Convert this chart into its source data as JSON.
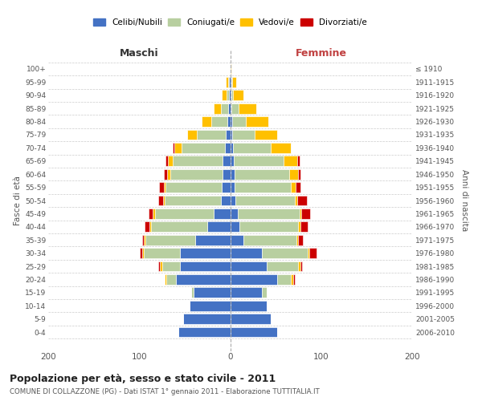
{
  "age_groups": [
    "0-4",
    "5-9",
    "10-14",
    "15-19",
    "20-24",
    "25-29",
    "30-34",
    "35-39",
    "40-44",
    "45-49",
    "50-54",
    "55-59",
    "60-64",
    "65-69",
    "70-74",
    "75-79",
    "80-84",
    "85-89",
    "90-94",
    "95-99",
    "100+"
  ],
  "birth_years": [
    "2006-2010",
    "2001-2005",
    "1996-2000",
    "1991-1995",
    "1986-1990",
    "1981-1985",
    "1976-1980",
    "1971-1975",
    "1966-1970",
    "1961-1965",
    "1956-1960",
    "1951-1955",
    "1946-1950",
    "1941-1945",
    "1936-1940",
    "1931-1935",
    "1926-1930",
    "1921-1925",
    "1916-1920",
    "1911-1915",
    "≤ 1910"
  ],
  "male_celibi": [
    57,
    52,
    45,
    40,
    60,
    55,
    55,
    38,
    25,
    18,
    10,
    9,
    8,
    8,
    6,
    5,
    3,
    2,
    1,
    1,
    0
  ],
  "male_coniugati": [
    0,
    0,
    0,
    3,
    10,
    20,
    40,
    55,
    62,
    65,
    62,
    62,
    58,
    55,
    47,
    32,
    18,
    8,
    3,
    1,
    0
  ],
  "male_vedovi": [
    0,
    0,
    0,
    0,
    2,
    2,
    2,
    2,
    2,
    2,
    2,
    2,
    3,
    5,
    8,
    10,
    10,
    8,
    5,
    3,
    0
  ],
  "male_divorziati": [
    0,
    0,
    0,
    0,
    0,
    2,
    2,
    2,
    5,
    5,
    5,
    5,
    4,
    3,
    2,
    0,
    0,
    0,
    0,
    0,
    0
  ],
  "female_nubili": [
    52,
    45,
    40,
    35,
    52,
    40,
    35,
    15,
    10,
    8,
    6,
    5,
    5,
    4,
    3,
    2,
    2,
    1,
    1,
    1,
    0
  ],
  "female_coniugate": [
    0,
    0,
    0,
    5,
    15,
    35,
    50,
    58,
    65,
    68,
    65,
    62,
    60,
    55,
    42,
    25,
    15,
    8,
    2,
    1,
    0
  ],
  "female_vedove": [
    0,
    0,
    0,
    0,
    2,
    2,
    2,
    2,
    2,
    2,
    3,
    5,
    10,
    15,
    22,
    25,
    25,
    20,
    12,
    5,
    1
  ],
  "female_divorziate": [
    0,
    0,
    0,
    0,
    2,
    2,
    8,
    5,
    8,
    10,
    10,
    5,
    2,
    2,
    0,
    0,
    0,
    0,
    0,
    0,
    0
  ],
  "colors": {
    "celibi": "#4472c4",
    "coniugati": "#b8cfa0",
    "vedovi": "#ffc000",
    "divorziati": "#cc0000"
  },
  "title": "Popolazione per età, sesso e stato civile - 2011",
  "subtitle": "COMUNE DI COLLAZZONE (PG) - Dati ISTAT 1° gennaio 2011 - Elaborazione TUTTITALIA.IT",
  "xlabel_left": "Maschi",
  "xlabel_right": "Femmine",
  "ylabel_left": "Fasce di età",
  "ylabel_right": "Anni di nascita",
  "xlim": 200,
  "bg_color": "#ffffff",
  "grid_color": "#cccccc",
  "legend_labels": [
    "Celibi/Nubili",
    "Coniugati/e",
    "Vedovi/e",
    "Divorziati/e"
  ]
}
